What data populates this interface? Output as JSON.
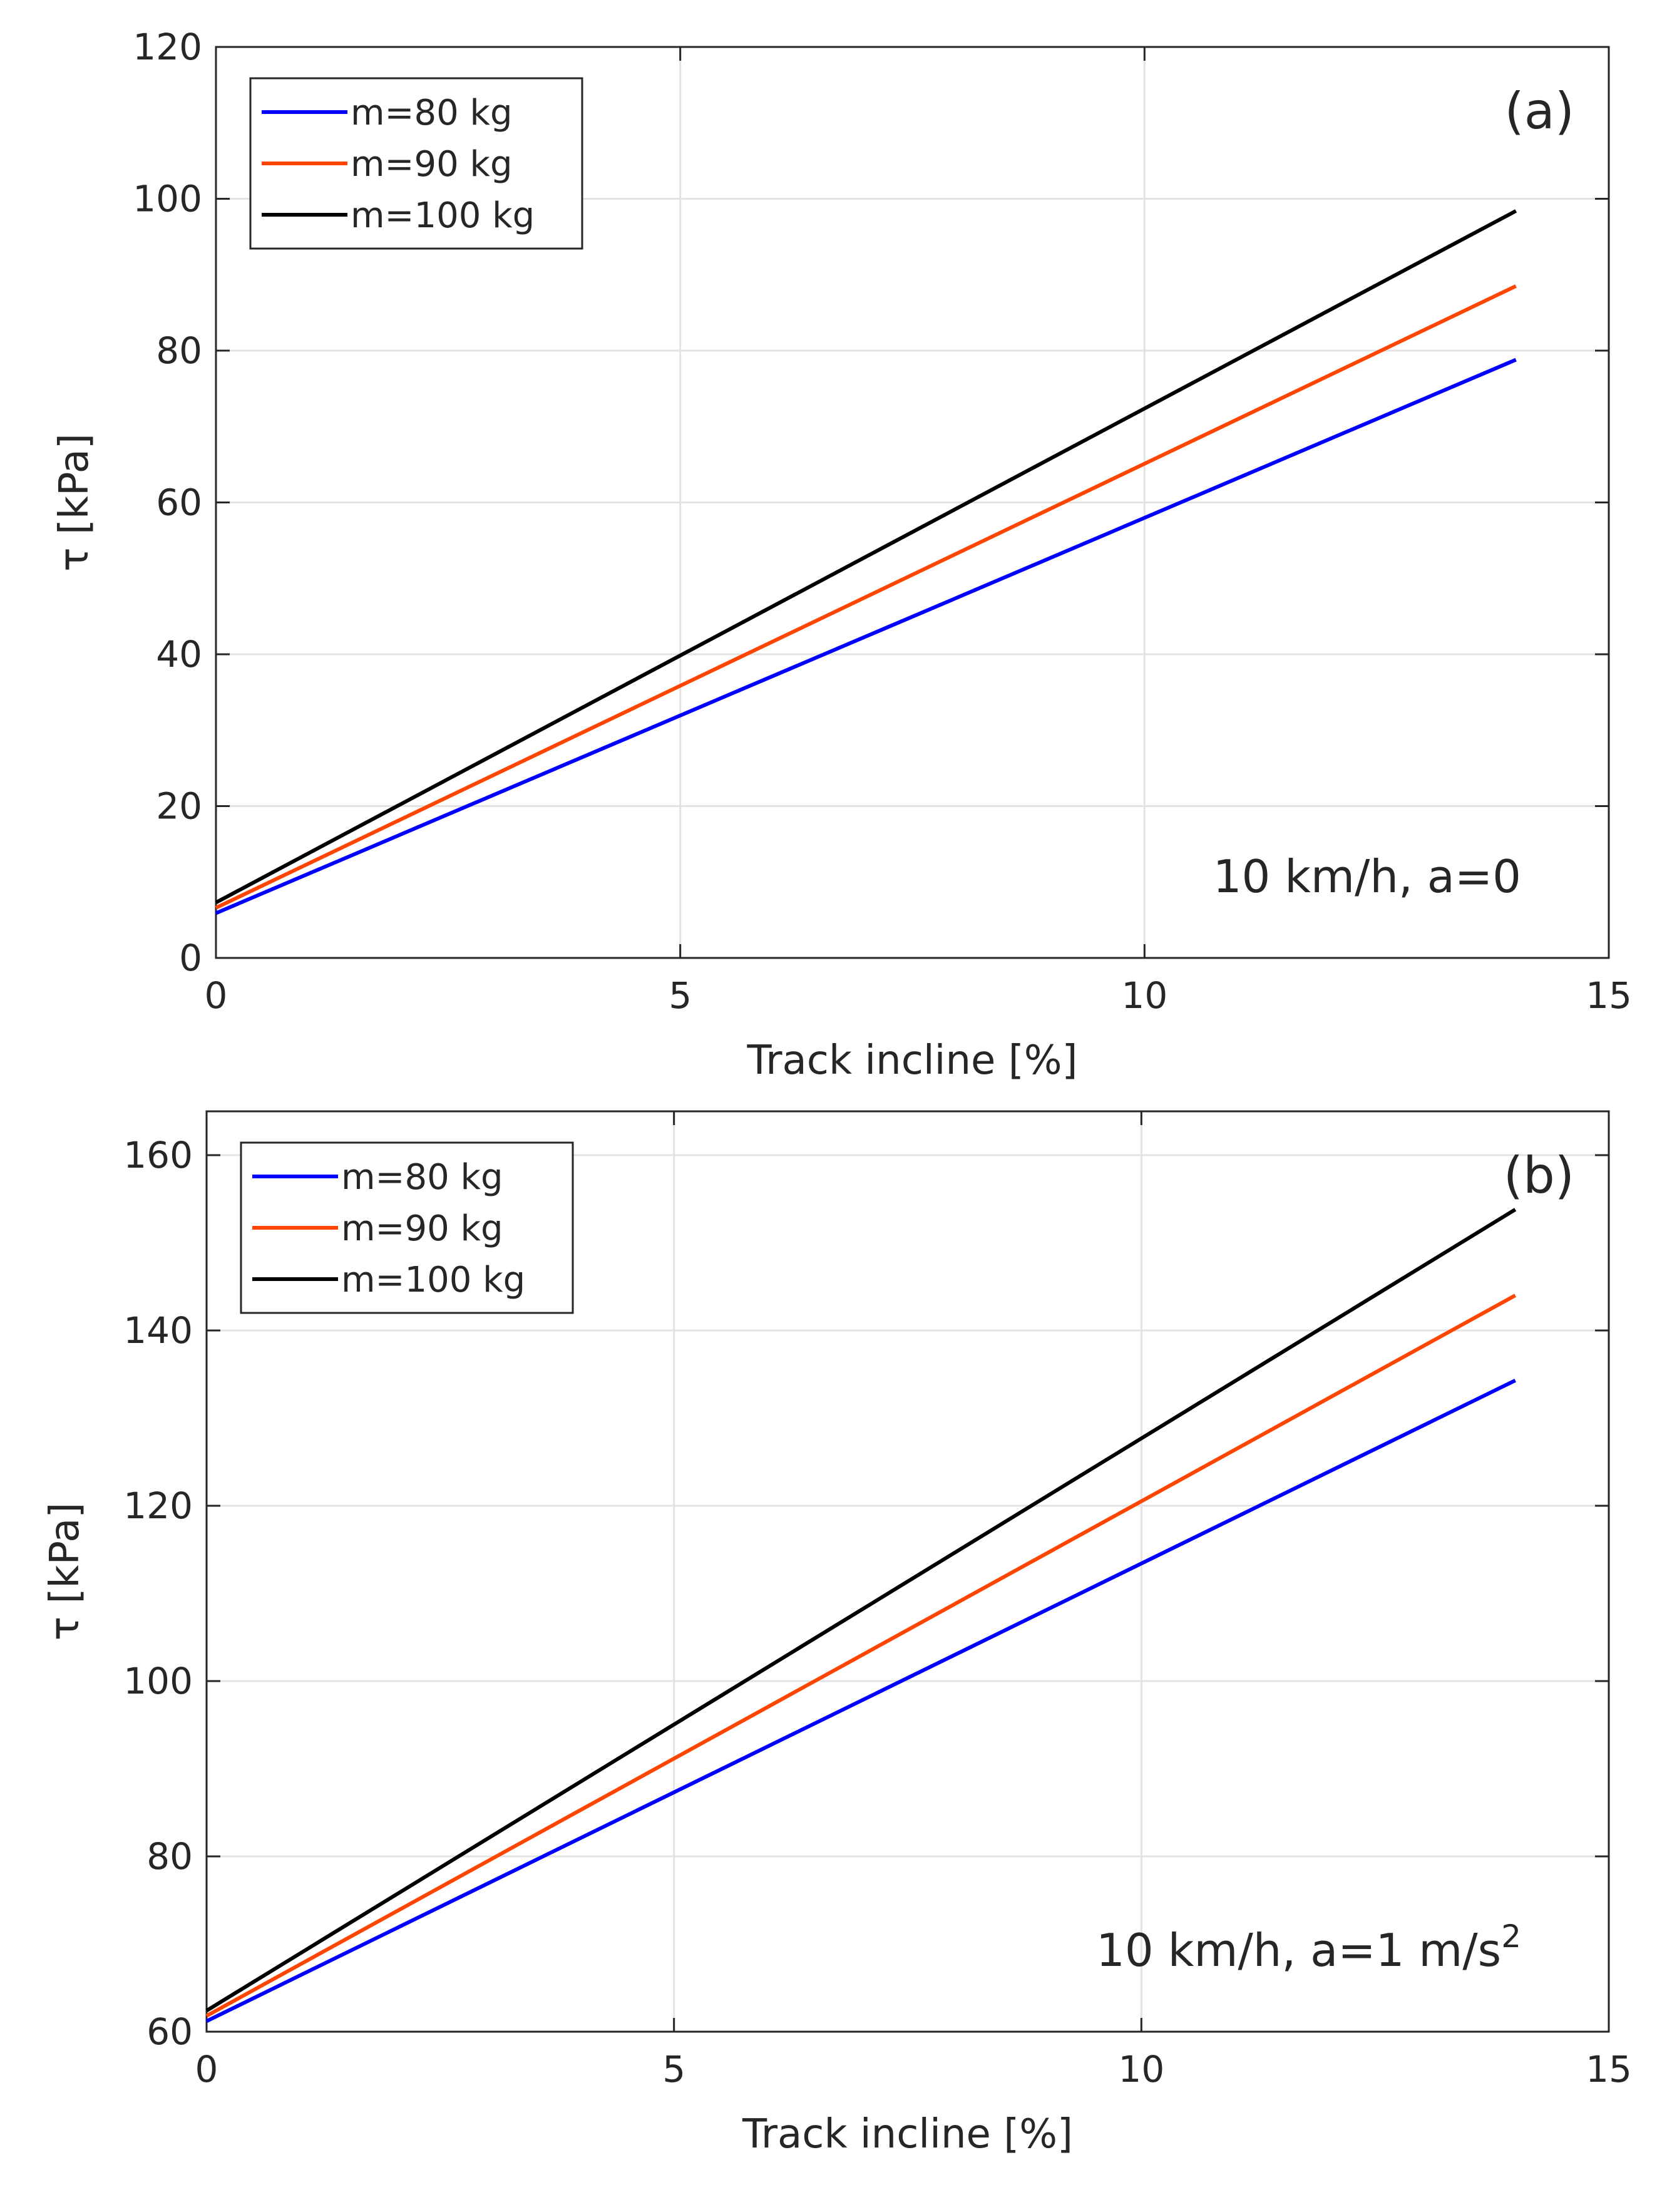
{
  "chart_data": [
    {
      "type": "line",
      "panel_label": "(a)",
      "annotation": "10 km/h, a=0",
      "annotation_sup": "",
      "xlabel": "Track incline [%]",
      "ylabel": "τ [kPa]",
      "xlim": [
        0,
        15
      ],
      "ylim": [
        0,
        120
      ],
      "xticks": [
        0,
        5,
        10,
        15
      ],
      "yticks": [
        0,
        20,
        40,
        60,
        80,
        100,
        120
      ],
      "grid": true,
      "legend_position": "top-left",
      "series": [
        {
          "name": "m=80 kg",
          "color": "#0000ff",
          "x": [
            0,
            14
          ],
          "y": [
            5.9,
            78.8
          ]
        },
        {
          "name": "m=90 kg",
          "color": "#ff4500",
          "x": [
            0,
            14
          ],
          "y": [
            6.6,
            88.5
          ]
        },
        {
          "name": "m=100 kg",
          "color": "#000000",
          "x": [
            0,
            14
          ],
          "y": [
            7.3,
            98.4
          ]
        }
      ]
    },
    {
      "type": "line",
      "panel_label": "(b)",
      "annotation": "10 km/h, a=1 m/s",
      "annotation_sup": "2",
      "xlabel": "Track incline [%]",
      "ylabel": "τ [kPa]",
      "xlim": [
        0,
        15
      ],
      "ylim": [
        60,
        165
      ],
      "xticks": [
        0,
        5,
        10,
        15
      ],
      "yticks": [
        60,
        80,
        100,
        120,
        140,
        160
      ],
      "grid": true,
      "legend_position": "top-left",
      "series": [
        {
          "name": "m=80 kg",
          "color": "#0000ff",
          "x": [
            0,
            14
          ],
          "y": [
            61.2,
            134.3
          ]
        },
        {
          "name": "m=90 kg",
          "color": "#ff4500",
          "x": [
            0,
            14
          ],
          "y": [
            61.8,
            144.0
          ]
        },
        {
          "name": "m=100 kg",
          "color": "#000000",
          "x": [
            0,
            14
          ],
          "y": [
            62.4,
            153.8
          ]
        }
      ]
    }
  ]
}
